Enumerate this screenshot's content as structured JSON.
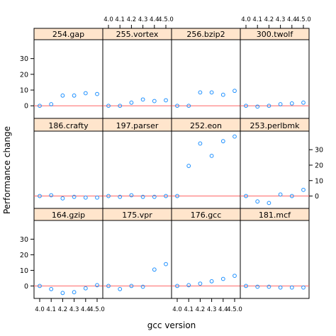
{
  "chart_data": {
    "type": "scatter",
    "xlabel": "gcc version",
    "ylabel": "Performance change",
    "x_ticks": [
      "4.0",
      "4.1",
      "4.2",
      "4.3",
      "4.4",
      "4.5.0"
    ],
    "y_ticks": [
      0,
      10,
      20,
      30
    ],
    "ylim": [
      -8,
      42
    ],
    "reference_line_y": 0,
    "colors": {
      "points": "#1e90ff",
      "reference_line": "#ff6666",
      "strip": "#ffe5cc"
    },
    "panels": [
      {
        "name": "254.gap",
        "values": [
          0,
          1,
          6.5,
          6.5,
          8,
          7.5
        ]
      },
      {
        "name": "255.vortex",
        "values": [
          0,
          0,
          2,
          4,
          3,
          3.5
        ]
      },
      {
        "name": "256.bzip2",
        "values": [
          0,
          0,
          8.5,
          8.5,
          7,
          9.5
        ]
      },
      {
        "name": "300.twolf",
        "values": [
          0,
          -0.5,
          0,
          1,
          1.5,
          2
        ]
      },
      {
        "name": "186.crafty",
        "values": [
          0,
          0.5,
          -1.5,
          -0.5,
          -1,
          -1
        ]
      },
      {
        "name": "197.parser",
        "values": [
          0,
          -0.5,
          0.5,
          -0.5,
          -0.5,
          0
        ]
      },
      {
        "name": "252.eon",
        "values": [
          0,
          19.5,
          34,
          26,
          35.5,
          38.5
        ]
      },
      {
        "name": "253.perlbmk",
        "values": [
          0,
          -3.5,
          -4.5,
          1,
          0,
          4
        ]
      },
      {
        "name": "164.gzip",
        "values": [
          0,
          -2,
          -4.5,
          -4,
          -1.5,
          0.5
        ]
      },
      {
        "name": "175.vpr",
        "values": [
          0,
          -2,
          0,
          -0.5,
          10.5,
          14
        ]
      },
      {
        "name": "176.gcc",
        "values": [
          0,
          0.5,
          1.5,
          3,
          4.5,
          6.5
        ]
      },
      {
        "name": "181.mcf",
        "values": [
          0,
          -0.5,
          -0.5,
          -1,
          -1,
          -1
        ]
      }
    ]
  }
}
